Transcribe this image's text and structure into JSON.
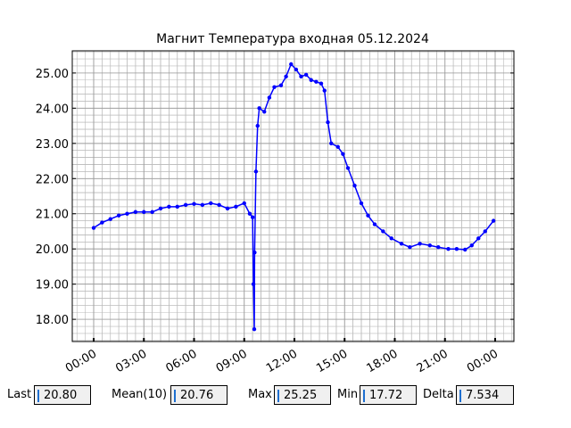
{
  "chart_data": {
    "type": "line",
    "title": "Магнит Температура входная 05.12.2024",
    "x": [
      0,
      0.5,
      1,
      1.5,
      2,
      2.5,
      3,
      3.5,
      4,
      4.5,
      5,
      5.5,
      6,
      6.5,
      7,
      7.5,
      8,
      8.5,
      9,
      9.33,
      9.5,
      9.55,
      9.6,
      9.62,
      9.7,
      9.8,
      9.9,
      10.2,
      10.5,
      10.8,
      11.2,
      11.5,
      11.8,
      12.1,
      12.4,
      12.7,
      13.0,
      13.3,
      13.6,
      13.8,
      14.0,
      14.2,
      14.6,
      14.9,
      15.2,
      15.6,
      16.0,
      16.4,
      16.8,
      17.3,
      17.8,
      18.4,
      18.9,
      19.5,
      20.1,
      20.6,
      21.2,
      21.7,
      22.2,
      22.6,
      23.0,
      23.4,
      23.9
    ],
    "values": [
      20.6,
      20.75,
      20.85,
      20.95,
      21.0,
      21.05,
      21.05,
      21.05,
      21.15,
      21.2,
      21.2,
      21.25,
      21.28,
      21.25,
      21.3,
      21.25,
      21.15,
      21.2,
      21.3,
      21.0,
      20.9,
      19.0,
      17.72,
      19.9,
      22.2,
      23.5,
      24.0,
      23.9,
      24.3,
      24.6,
      24.65,
      24.9,
      25.25,
      25.1,
      24.9,
      24.95,
      24.8,
      24.75,
      24.7,
      24.5,
      23.6,
      23.0,
      22.9,
      22.7,
      22.3,
      21.8,
      21.3,
      20.95,
      20.7,
      20.5,
      20.3,
      20.15,
      20.05,
      20.15,
      20.1,
      20.05,
      20.0,
      20.0,
      19.98,
      20.1,
      20.3,
      20.5,
      20.8
    ],
    "color": "#0000ff",
    "xlim": [
      -1.28,
      25.12
    ],
    "xticks": [
      {
        "value": 0,
        "label": "00:00"
      },
      {
        "value": 3,
        "label": "03:00"
      },
      {
        "value": 6,
        "label": "06:00"
      },
      {
        "value": 9,
        "label": "09:00"
      },
      {
        "value": 12,
        "label": "12:00"
      },
      {
        "value": 15,
        "label": "15:00"
      },
      {
        "value": 18,
        "label": "18:00"
      },
      {
        "value": 21,
        "label": "21:00"
      },
      {
        "value": 24,
        "label": "00:00"
      }
    ],
    "ylim": [
      17.37,
      25.63
    ],
    "yticks": [
      {
        "value": 18,
        "label": "18.00"
      },
      {
        "value": 19,
        "label": "19.00"
      },
      {
        "value": 20,
        "label": "20.00"
      },
      {
        "value": 21,
        "label": "21.00"
      },
      {
        "value": 22,
        "label": "22.00"
      },
      {
        "value": 23,
        "label": "23.00"
      },
      {
        "value": 24,
        "label": "24.00"
      },
      {
        "value": 25,
        "label": "25.00"
      }
    ],
    "grid": true,
    "minor_grid": true
  },
  "stats": [
    {
      "label": "Last",
      "value": "20.80"
    },
    {
      "label": "Mean(10)",
      "value": "20.76"
    },
    {
      "label": "Max",
      "value": "25.25"
    },
    {
      "label": "Min",
      "value": "17.72"
    },
    {
      "label": "Delta",
      "value": "7.534"
    }
  ]
}
